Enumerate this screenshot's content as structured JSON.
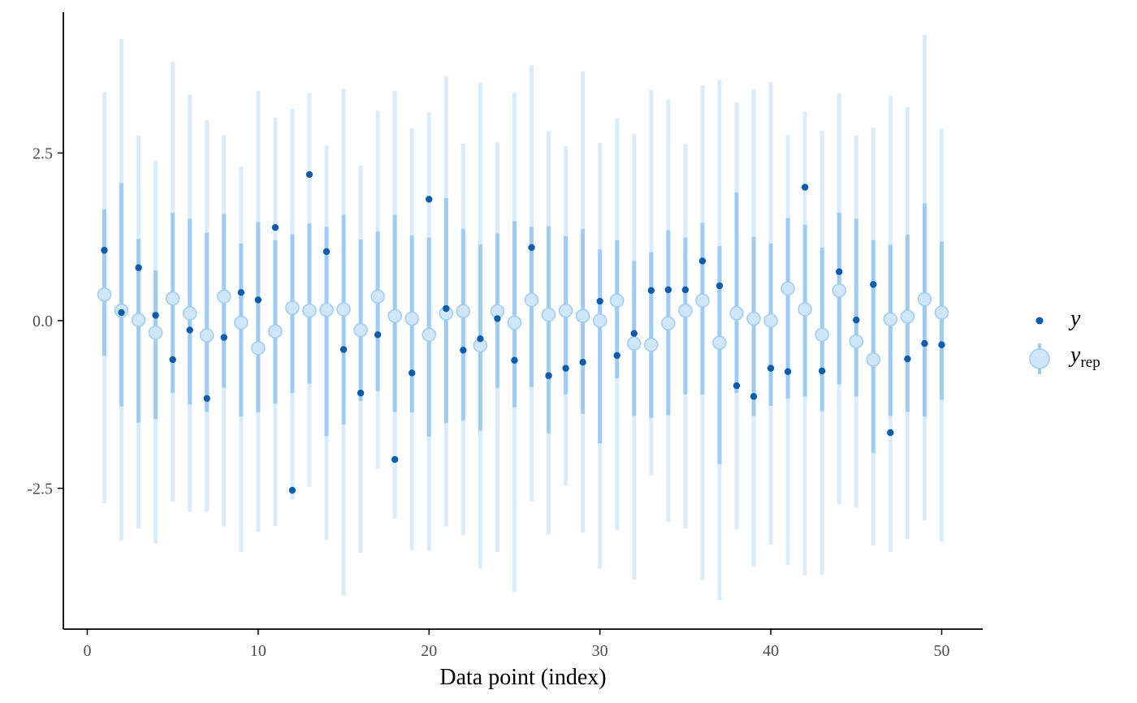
{
  "chart_data": {
    "type": "interval",
    "xlabel": "Data point (index)",
    "ylabel": "",
    "xlim": [
      -1.4,
      52.4
    ],
    "ylim": [
      -4.6,
      4.6
    ],
    "x_ticks": [
      0,
      10,
      20,
      30,
      40,
      50
    ],
    "y_ticks": [
      2.5,
      0.0,
      -2.5
    ],
    "x_tick_labels": [
      "0",
      "10",
      "20",
      "30",
      "40",
      "50"
    ],
    "y_tick_labels": [
      "2.5",
      "0.0",
      "-2.5"
    ],
    "legend_position": "right",
    "grid": false,
    "colors": {
      "y_point": "#0b5cad",
      "yrep_outer": "#d9ecfb",
      "yrep_inner": "#9ecbf4",
      "yrep_point_fill": "#cfe6f8",
      "yrep_point_stroke": "#9ecbf4",
      "axis": "#000000"
    },
    "series": [
      {
        "name": "y",
        "legend_label": "y",
        "values": [
          1.05,
          0.12,
          0.79,
          0.08,
          -0.58,
          -0.14,
          -1.16,
          -0.25,
          0.42,
          0.31,
          1.39,
          -2.53,
          2.18,
          1.03,
          -0.43,
          -1.08,
          -0.21,
          -2.07,
          -0.78,
          1.81,
          0.18,
          -0.44,
          -0.27,
          0.03,
          -0.59,
          1.09,
          -0.82,
          -0.71,
          -0.62,
          0.29,
          -0.52,
          -0.19,
          0.45,
          0.46,
          0.46,
          0.89,
          0.52,
          -0.97,
          -1.13,
          -0.71,
          -0.76,
          1.99,
          -0.75,
          0.73,
          0.01,
          0.54,
          -1.67,
          -0.57,
          -0.34,
          -0.36
        ]
      },
      {
        "name": "yrep",
        "legend_label": "y",
        "legend_sub": "rep",
        "median": [
          0.39,
          0.15,
          0.01,
          -0.18,
          0.33,
          0.11,
          -0.22,
          0.36,
          -0.03,
          -0.41,
          -0.16,
          0.19,
          0.15,
          0.16,
          0.17,
          -0.14,
          0.36,
          0.07,
          0.03,
          -0.21,
          0.11,
          0.14,
          -0.37,
          0.14,
          -0.03,
          0.31,
          0.09,
          0.15,
          0.07,
          0.0,
          0.3,
          -0.34,
          -0.36,
          -0.04,
          0.15,
          0.3,
          -0.33,
          0.11,
          0.03,
          0.0,
          0.48,
          0.17,
          -0.21,
          0.45,
          -0.31,
          -0.58,
          0.02,
          0.06,
          0.32,
          0.12
        ],
        "inner_lo": [
          -0.52,
          -1.28,
          -1.52,
          -1.47,
          -1.08,
          -1.25,
          -1.36,
          -1.0,
          -1.43,
          -1.37,
          -1.24,
          -1.08,
          -0.94,
          -1.72,
          -1.55,
          -1.2,
          -1.05,
          -1.36,
          -1.37,
          -1.73,
          -1.53,
          -1.49,
          -1.64,
          -1.0,
          -1.29,
          -0.99,
          -1.68,
          -1.1,
          -1.39,
          -1.83,
          -0.86,
          -1.42,
          -1.45,
          -1.41,
          -1.1,
          -1.1,
          -2.14,
          -1.08,
          -1.42,
          -1.27,
          -1.16,
          -1.13,
          -1.35,
          -0.95,
          -1.13,
          -1.97,
          -1.42,
          -1.36,
          -1.43,
          -1.18
        ],
        "inner_hi": [
          1.66,
          2.05,
          1.22,
          0.75,
          1.61,
          1.52,
          1.31,
          1.59,
          1.15,
          1.47,
          1.2,
          1.29,
          1.45,
          1.4,
          1.58,
          1.21,
          1.33,
          1.58,
          1.27,
          1.24,
          1.83,
          1.37,
          1.14,
          1.3,
          1.48,
          1.4,
          1.41,
          1.26,
          1.37,
          1.06,
          1.2,
          0.89,
          1.02,
          1.35,
          1.24,
          1.46,
          1.11,
          1.91,
          1.25,
          1.15,
          1.53,
          1.43,
          1.09,
          1.61,
          1.52,
          1.2,
          1.13,
          1.28,
          1.75,
          1.18
        ],
        "outer_lo": [
          -2.72,
          -3.28,
          -3.1,
          -3.32,
          -2.7,
          -2.85,
          -2.85,
          -3.07,
          -3.45,
          -3.15,
          -3.06,
          -2.67,
          -2.48,
          -3.27,
          -4.1,
          -3.46,
          -2.21,
          -2.95,
          -3.42,
          -3.44,
          -3.07,
          -3.2,
          -3.7,
          -3.45,
          -4.04,
          -2.69,
          -3.19,
          -2.46,
          -3.16,
          -3.7,
          -3.12,
          -3.86,
          -2.31,
          -3.0,
          -3.1,
          -3.87,
          -4.17,
          -3.11,
          -3.67,
          -3.34,
          -3.65,
          -3.8,
          -3.79,
          -2.74,
          -2.79,
          -3.35,
          -3.45,
          -3.26,
          -2.98,
          -3.3
        ],
        "outer_hi": [
          3.41,
          4.2,
          2.76,
          2.38,
          3.86,
          3.37,
          2.99,
          2.77,
          2.3,
          3.43,
          3.03,
          3.16,
          3.39,
          2.61,
          3.46,
          2.31,
          3.13,
          3.43,
          2.87,
          3.11,
          3.65,
          2.64,
          3.55,
          2.66,
          3.4,
          3.81,
          2.82,
          2.6,
          3.72,
          2.65,
          3.02,
          2.79,
          3.44,
          3.3,
          2.63,
          3.51,
          3.59,
          3.26,
          3.45,
          3.56,
          2.77,
          3.12,
          2.83,
          3.39,
          2.76,
          2.88,
          3.35,
          3.18,
          4.26,
          2.86
        ]
      }
    ]
  }
}
